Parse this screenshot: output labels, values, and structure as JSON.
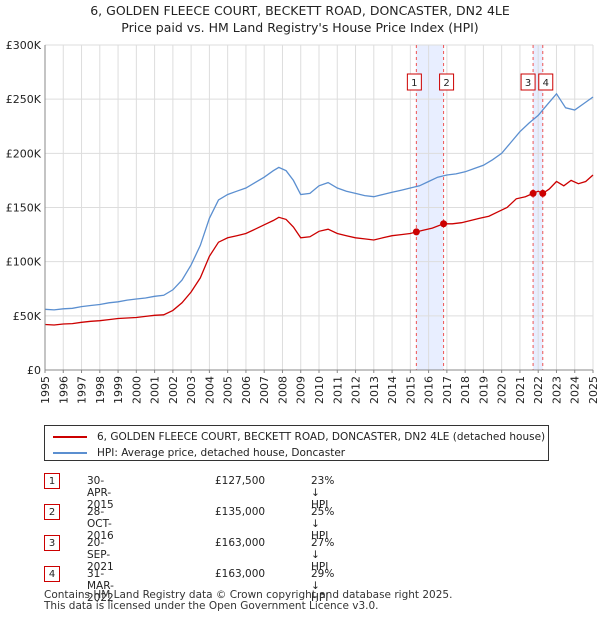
{
  "title": {
    "line1": "6, GOLDEN FLEECE COURT, BECKETT ROAD, DONCASTER, DN2 4LE",
    "line2": "Price paid vs. HM Land Registry's House Price Index (HPI)"
  },
  "colors": {
    "property": "#cc0000",
    "hpi": "#5b8fd0",
    "band": "#e8eeff",
    "marker_line": "#ee5555"
  },
  "chart_data": {
    "type": "line",
    "xlim": [
      1995,
      2025
    ],
    "ylim": [
      0,
      300000
    ],
    "y_ticks": [
      0,
      50000,
      100000,
      150000,
      200000,
      250000,
      300000
    ],
    "y_tick_labels": [
      "£0",
      "£50K",
      "£100K",
      "£150K",
      "£200K",
      "£250K",
      "£300K"
    ],
    "x_ticks": [
      "1995",
      "1996",
      "1997",
      "1998",
      "1999",
      "2000",
      "2001",
      "2002",
      "2003",
      "2004",
      "2005",
      "2006",
      "2007",
      "2008",
      "2009",
      "2010",
      "2011",
      "2012",
      "2013",
      "2014",
      "2015",
      "2016",
      "2017",
      "2018",
      "2019",
      "2020",
      "2021",
      "2022",
      "2023",
      "2024",
      "2025"
    ],
    "series": [
      {
        "name": "6, GOLDEN FLEECE COURT, BECKETT ROAD, DONCASTER, DN2 4LE (detached house)",
        "color": "#cc0000",
        "points": [
          [
            1995.0,
            42000
          ],
          [
            1995.5,
            41500
          ],
          [
            1996.0,
            42500
          ],
          [
            1996.5,
            42800
          ],
          [
            1997.0,
            44000
          ],
          [
            1997.5,
            45000
          ],
          [
            1998.0,
            45500
          ],
          [
            1998.5,
            46500
          ],
          [
            1999.0,
            47500
          ],
          [
            1999.5,
            48000
          ],
          [
            2000.0,
            48500
          ],
          [
            2000.5,
            49500
          ],
          [
            2001.0,
            50500
          ],
          [
            2001.5,
            51000
          ],
          [
            2002.0,
            55000
          ],
          [
            2002.5,
            62000
          ],
          [
            2003.0,
            72000
          ],
          [
            2003.5,
            85000
          ],
          [
            2004.0,
            105000
          ],
          [
            2004.5,
            118000
          ],
          [
            2005.0,
            122000
          ],
          [
            2005.5,
            124000
          ],
          [
            2006.0,
            126000
          ],
          [
            2006.5,
            130000
          ],
          [
            2007.0,
            134000
          ],
          [
            2007.5,
            138000
          ],
          [
            2007.8,
            141000
          ],
          [
            2008.2,
            139000
          ],
          [
            2008.6,
            132000
          ],
          [
            2009.0,
            122000
          ],
          [
            2009.5,
            123000
          ],
          [
            2010.0,
            128000
          ],
          [
            2010.5,
            130000
          ],
          [
            2011.0,
            126000
          ],
          [
            2011.5,
            124000
          ],
          [
            2012.0,
            122000
          ],
          [
            2012.5,
            121000
          ],
          [
            2013.0,
            120000
          ],
          [
            2013.5,
            122000
          ],
          [
            2014.0,
            124000
          ],
          [
            2014.5,
            125000
          ],
          [
            2015.0,
            126000
          ],
          [
            2015.33,
            127500
          ],
          [
            2015.7,
            129000
          ],
          [
            2016.2,
            131000
          ],
          [
            2016.82,
            135000
          ],
          [
            2017.3,
            135000
          ],
          [
            2017.8,
            136000
          ],
          [
            2018.3,
            138000
          ],
          [
            2018.8,
            140000
          ],
          [
            2019.3,
            142000
          ],
          [
            2019.8,
            146000
          ],
          [
            2020.3,
            150000
          ],
          [
            2020.8,
            158000
          ],
          [
            2021.3,
            160000
          ],
          [
            2021.72,
            163000
          ],
          [
            2022.0,
            165000
          ],
          [
            2022.25,
            163000
          ],
          [
            2022.6,
            167000
          ],
          [
            2023.0,
            174000
          ],
          [
            2023.4,
            170000
          ],
          [
            2023.8,
            175000
          ],
          [
            2024.2,
            172000
          ],
          [
            2024.6,
            174000
          ],
          [
            2025.0,
            180000
          ]
        ]
      },
      {
        "name": "HPI: Average price, detached house, Doncaster",
        "color": "#5b8fd0",
        "points": [
          [
            1995.0,
            56000
          ],
          [
            1995.5,
            55500
          ],
          [
            1996.0,
            56500
          ],
          [
            1996.5,
            57000
          ],
          [
            1997.0,
            58500
          ],
          [
            1997.5,
            59500
          ],
          [
            1998.0,
            60500
          ],
          [
            1998.5,
            62000
          ],
          [
            1999.0,
            63000
          ],
          [
            1999.5,
            64500
          ],
          [
            2000.0,
            65500
          ],
          [
            2000.5,
            66500
          ],
          [
            2001.0,
            68000
          ],
          [
            2001.5,
            69000
          ],
          [
            2002.0,
            74000
          ],
          [
            2002.5,
            83000
          ],
          [
            2003.0,
            97000
          ],
          [
            2003.5,
            115000
          ],
          [
            2004.0,
            140000
          ],
          [
            2004.5,
            157000
          ],
          [
            2005.0,
            162000
          ],
          [
            2005.5,
            165000
          ],
          [
            2006.0,
            168000
          ],
          [
            2006.5,
            173000
          ],
          [
            2007.0,
            178000
          ],
          [
            2007.5,
            184000
          ],
          [
            2007.8,
            187000
          ],
          [
            2008.2,
            184000
          ],
          [
            2008.6,
            175000
          ],
          [
            2009.0,
            162000
          ],
          [
            2009.5,
            163000
          ],
          [
            2010.0,
            170000
          ],
          [
            2010.5,
            173000
          ],
          [
            2011.0,
            168000
          ],
          [
            2011.5,
            165000
          ],
          [
            2012.0,
            163000
          ],
          [
            2012.5,
            161000
          ],
          [
            2013.0,
            160000
          ],
          [
            2013.5,
            162000
          ],
          [
            2014.0,
            164000
          ],
          [
            2014.5,
            166000
          ],
          [
            2015.0,
            168000
          ],
          [
            2015.5,
            170000
          ],
          [
            2016.0,
            174000
          ],
          [
            2016.5,
            178000
          ],
          [
            2017.0,
            180000
          ],
          [
            2017.5,
            181000
          ],
          [
            2018.0,
            183000
          ],
          [
            2018.5,
            186000
          ],
          [
            2019.0,
            189000
          ],
          [
            2019.5,
            194000
          ],
          [
            2020.0,
            200000
          ],
          [
            2020.5,
            210000
          ],
          [
            2021.0,
            220000
          ],
          [
            2021.5,
            228000
          ],
          [
            2022.0,
            235000
          ],
          [
            2022.5,
            245000
          ],
          [
            2023.0,
            255000
          ],
          [
            2023.5,
            242000
          ],
          [
            2024.0,
            240000
          ],
          [
            2024.5,
            246000
          ],
          [
            2025.0,
            252000
          ]
        ]
      }
    ],
    "sales": [
      {
        "label": "1",
        "x": 2015.33,
        "y": 127500
      },
      {
        "label": "2",
        "x": 2016.82,
        "y": 135000
      },
      {
        "label": "3",
        "x": 2021.72,
        "y": 163000
      },
      {
        "label": "4",
        "x": 2022.25,
        "y": 163000
      }
    ],
    "bands": [
      [
        2015.33,
        2016.82
      ],
      [
        2021.72,
        2022.25
      ]
    ]
  },
  "legend": {
    "property_label": "6, GOLDEN FLEECE COURT, BECKETT ROAD, DONCASTER, DN2 4LE (detached house)",
    "hpi_label": "HPI: Average price, detached house, Doncaster"
  },
  "sales_table": [
    {
      "num": "1",
      "date": "30-APR-2015",
      "price": "£127,500",
      "hpi": "23% ↓ HPI"
    },
    {
      "num": "2",
      "date": "28-OCT-2016",
      "price": "£135,000",
      "hpi": "25% ↓ HPI"
    },
    {
      "num": "3",
      "date": "20-SEP-2021",
      "price": "£163,000",
      "hpi": "27% ↓ HPI"
    },
    {
      "num": "4",
      "date": "31-MAR-2022",
      "price": "£163,000",
      "hpi": "29% ↓ HPI"
    }
  ],
  "footer": {
    "line1": "Contains HM Land Registry data © Crown copyright and database right 2025.",
    "line2": "This data is licensed under the Open Government Licence v3.0."
  }
}
